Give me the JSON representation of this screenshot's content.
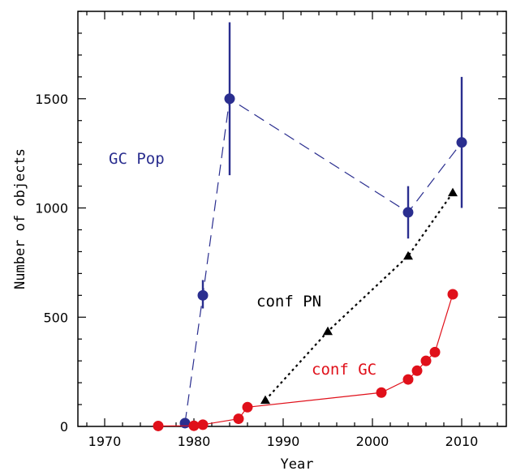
{
  "chart_data": {
    "type": "scatter",
    "xlabel": "Year",
    "ylabel": "Number of objects",
    "xlim": [
      1967,
      2015
    ],
    "ylim": [
      0,
      1900
    ],
    "xticks": [
      "1970",
      "1980",
      "1990",
      "2000",
      "2010"
    ],
    "yticks": [
      "0",
      "500",
      "1000",
      "1500"
    ],
    "grid": false,
    "series": [
      {
        "name": "GC Pop",
        "color": "#2a2e8f",
        "line_style": "dashed",
        "marker": "circle",
        "points": [
          {
            "x": 1979,
            "y": 15,
            "err_lo": 0,
            "err_hi": 0
          },
          {
            "x": 1981,
            "y": 600,
            "err_lo": 540,
            "err_hi": 670
          },
          {
            "x": 1984,
            "y": 1500,
            "err_lo": 1150,
            "err_hi": 1850
          },
          {
            "x": 2004,
            "y": 980,
            "err_lo": 860,
            "err_hi": 1100
          },
          {
            "x": 2010,
            "y": 1300,
            "err_lo": 1000,
            "err_hi": 1600
          }
        ]
      },
      {
        "name": "conf PN",
        "color": "#000000",
        "line_style": "dotted",
        "marker": "triangle",
        "points": [
          {
            "x": 1988,
            "y": 120
          },
          {
            "x": 1995,
            "y": 435
          },
          {
            "x": 2004,
            "y": 780
          },
          {
            "x": 2009,
            "y": 1070
          }
        ]
      },
      {
        "name": "conf GC",
        "color": "#e0101a",
        "line_style": "solid",
        "marker": "circle",
        "points": [
          {
            "x": 1976,
            "y": 2
          },
          {
            "x": 1980,
            "y": 3
          },
          {
            "x": 1981,
            "y": 8
          },
          {
            "x": 1985,
            "y": 35
          },
          {
            "x": 1986,
            "y": 88
          },
          {
            "x": 2001,
            "y": 155
          },
          {
            "x": 2004,
            "y": 215
          },
          {
            "x": 2005,
            "y": 255
          },
          {
            "x": 2006,
            "y": 300
          },
          {
            "x": 2007,
            "y": 340
          },
          {
            "x": 2009,
            "y": 605
          }
        ]
      }
    ]
  }
}
